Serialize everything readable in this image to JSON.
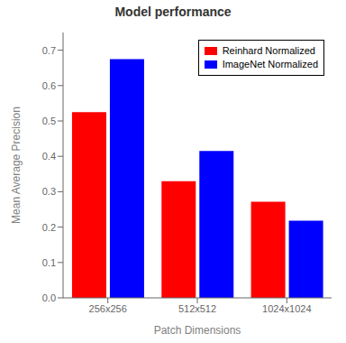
{
  "chart_data": {
    "type": "bar",
    "title": "Model performance",
    "xlabel": "Patch Dimensions",
    "ylabel": "Mean Average Precision",
    "categories": [
      "256x256",
      "512x512",
      "1024x1024"
    ],
    "series": [
      {
        "name": "Reinhard Normalized",
        "color": "#ff0000",
        "values": [
          0.525,
          0.33,
          0.272
        ]
      },
      {
        "name": "ImageNet Normalized",
        "color": "#0000ff",
        "values": [
          0.675,
          0.415,
          0.218
        ]
      }
    ],
    "ylim": [
      0,
      0.75
    ],
    "yticks": [
      {
        "value": 0.0,
        "label": "0.0"
      },
      0.1,
      0.2,
      0.3,
      0.4,
      0.5,
      0.6,
      0.7
    ],
    "legend": "upper right",
    "grid": false
  }
}
